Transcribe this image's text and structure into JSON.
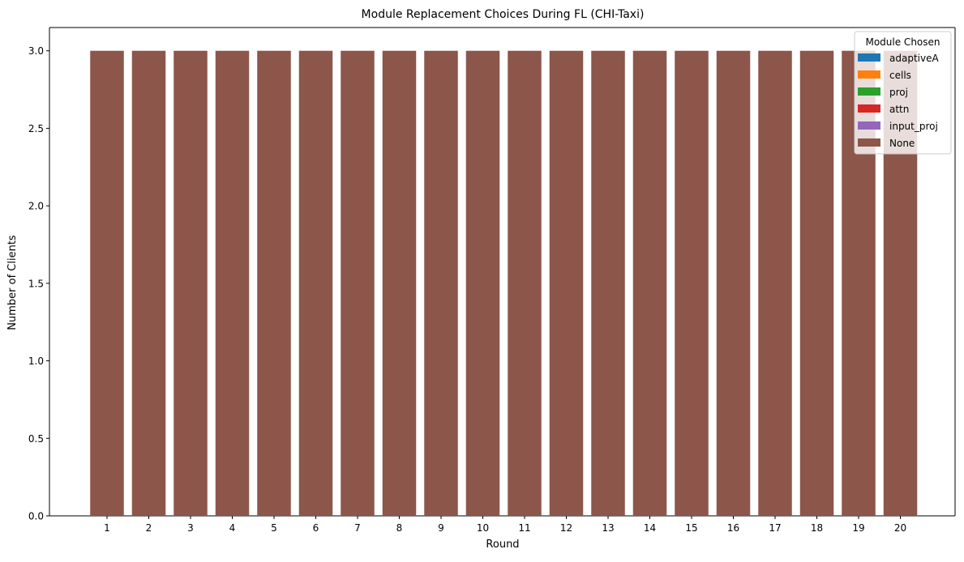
{
  "chart_data": {
    "type": "bar",
    "stacked": true,
    "title": "Module Replacement Choices During FL (CHI-Taxi)",
    "xlabel": "Round",
    "ylabel": "Number of Clients",
    "categories": [
      "1",
      "2",
      "3",
      "4",
      "5",
      "6",
      "7",
      "8",
      "9",
      "10",
      "11",
      "12",
      "13",
      "14",
      "15",
      "16",
      "17",
      "18",
      "19",
      "20"
    ],
    "ylim": [
      0,
      3.15
    ],
    "yticks": [
      0.0,
      0.5,
      1.0,
      1.5,
      2.0,
      2.5,
      3.0
    ],
    "ytick_labels": [
      "0.0",
      "0.5",
      "1.0",
      "1.5",
      "2.0",
      "2.5",
      "3.0"
    ],
    "grid": false,
    "legend": {
      "title": "Module Chosen",
      "placement": "top-right"
    },
    "series": [
      {
        "name": "adaptiveA",
        "color": "#1f77b4",
        "values": [
          0,
          0,
          0,
          0,
          0,
          0,
          0,
          0,
          0,
          0,
          0,
          0,
          0,
          0,
          0,
          0,
          0,
          0,
          0,
          0
        ]
      },
      {
        "name": "cells",
        "color": "#ff7f0e",
        "values": [
          0,
          0,
          0,
          0,
          0,
          0,
          0,
          0,
          0,
          0,
          0,
          0,
          0,
          0,
          0,
          0,
          0,
          0,
          0,
          0
        ]
      },
      {
        "name": "proj",
        "color": "#2ca02c",
        "values": [
          0,
          0,
          0,
          0,
          0,
          0,
          0,
          0,
          0,
          0,
          0,
          0,
          0,
          0,
          0,
          0,
          0,
          0,
          0,
          0
        ]
      },
      {
        "name": "attn",
        "color": "#d62728",
        "values": [
          0,
          0,
          0,
          0,
          0,
          0,
          0,
          0,
          0,
          0,
          0,
          0,
          0,
          0,
          0,
          0,
          0,
          0,
          0,
          0
        ]
      },
      {
        "name": "input_proj",
        "color": "#9467bd",
        "values": [
          0,
          0,
          0,
          0,
          0,
          0,
          0,
          0,
          0,
          0,
          0,
          0,
          0,
          0,
          0,
          0,
          0,
          0,
          0,
          0
        ]
      },
      {
        "name": "None",
        "color": "#8c564b",
        "values": [
          3,
          3,
          3,
          3,
          3,
          3,
          3,
          3,
          3,
          3,
          3,
          3,
          3,
          3,
          3,
          3,
          3,
          3,
          3,
          3
        ]
      }
    ]
  }
}
